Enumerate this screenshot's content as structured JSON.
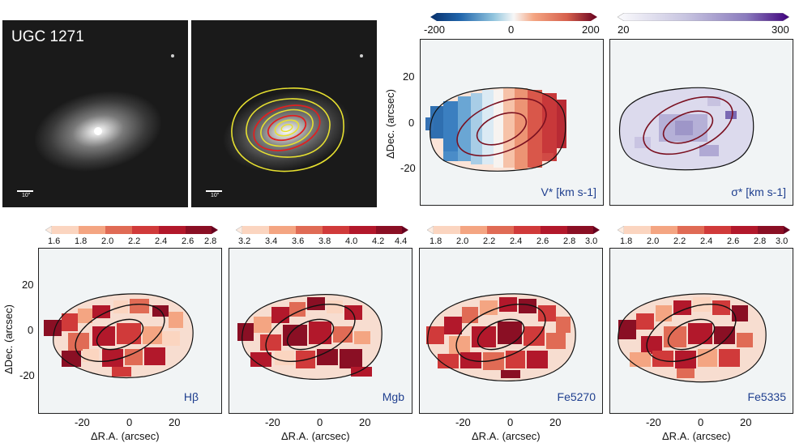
{
  "galaxy_name": "UGC 1271",
  "scalebar_label": "10\"",
  "axes": {
    "xlabel": "ΔR.A. (arcsec)",
    "ylabel": "ΔDec. (arcsec)",
    "x_ticks": [
      "-20",
      "0",
      "20"
    ],
    "y_ticks": [
      "20",
      "0",
      "-20"
    ]
  },
  "top_maps": [
    {
      "label": "V* [km s-1]",
      "cbar_ticks": [
        "-200",
        "0",
        "200"
      ],
      "cmap": "diverging-blue-red"
    },
    {
      "label": "σ* [km s-1]",
      "cbar_ticks": [
        "20",
        "300"
      ],
      "cmap": "white-purple"
    }
  ],
  "bottom_maps": [
    {
      "label": "Hβ",
      "cbar_ticks": [
        "1.6",
        "1.8",
        "2.0",
        "2.2",
        "2.4",
        "2.6",
        "2.8"
      ]
    },
    {
      "label": "Mgb",
      "cbar_ticks": [
        "3.2",
        "3.4",
        "3.6",
        "3.8",
        "4.0",
        "4.2",
        "4.4"
      ]
    },
    {
      "label": "Fe5270",
      "cbar_ticks": [
        "1.8",
        "2.0",
        "2.2",
        "2.4",
        "2.6",
        "2.8",
        "3.0"
      ]
    },
    {
      "label": "Fe5335",
      "cbar_ticks": [
        "1.8",
        "2.0",
        "2.2",
        "2.4",
        "2.6",
        "2.8",
        "3.0"
      ]
    }
  ],
  "colors": {
    "reds": [
      "#fbd5c0",
      "#f4a582",
      "#e06b55",
      "#d03a3a",
      "#b2182b",
      "#8a0f24"
    ],
    "blues": [
      "#2166ac",
      "#4393c3",
      "#92c5de",
      "#d1e5f0"
    ],
    "purples": [
      "#e9e6f2",
      "#c7c4e0",
      "#9e9ac8",
      "#6a51a3"
    ],
    "contour_dark": "#7a1020",
    "contour_yellow": "#e6e030",
    "contour_red": "#e02020"
  }
}
